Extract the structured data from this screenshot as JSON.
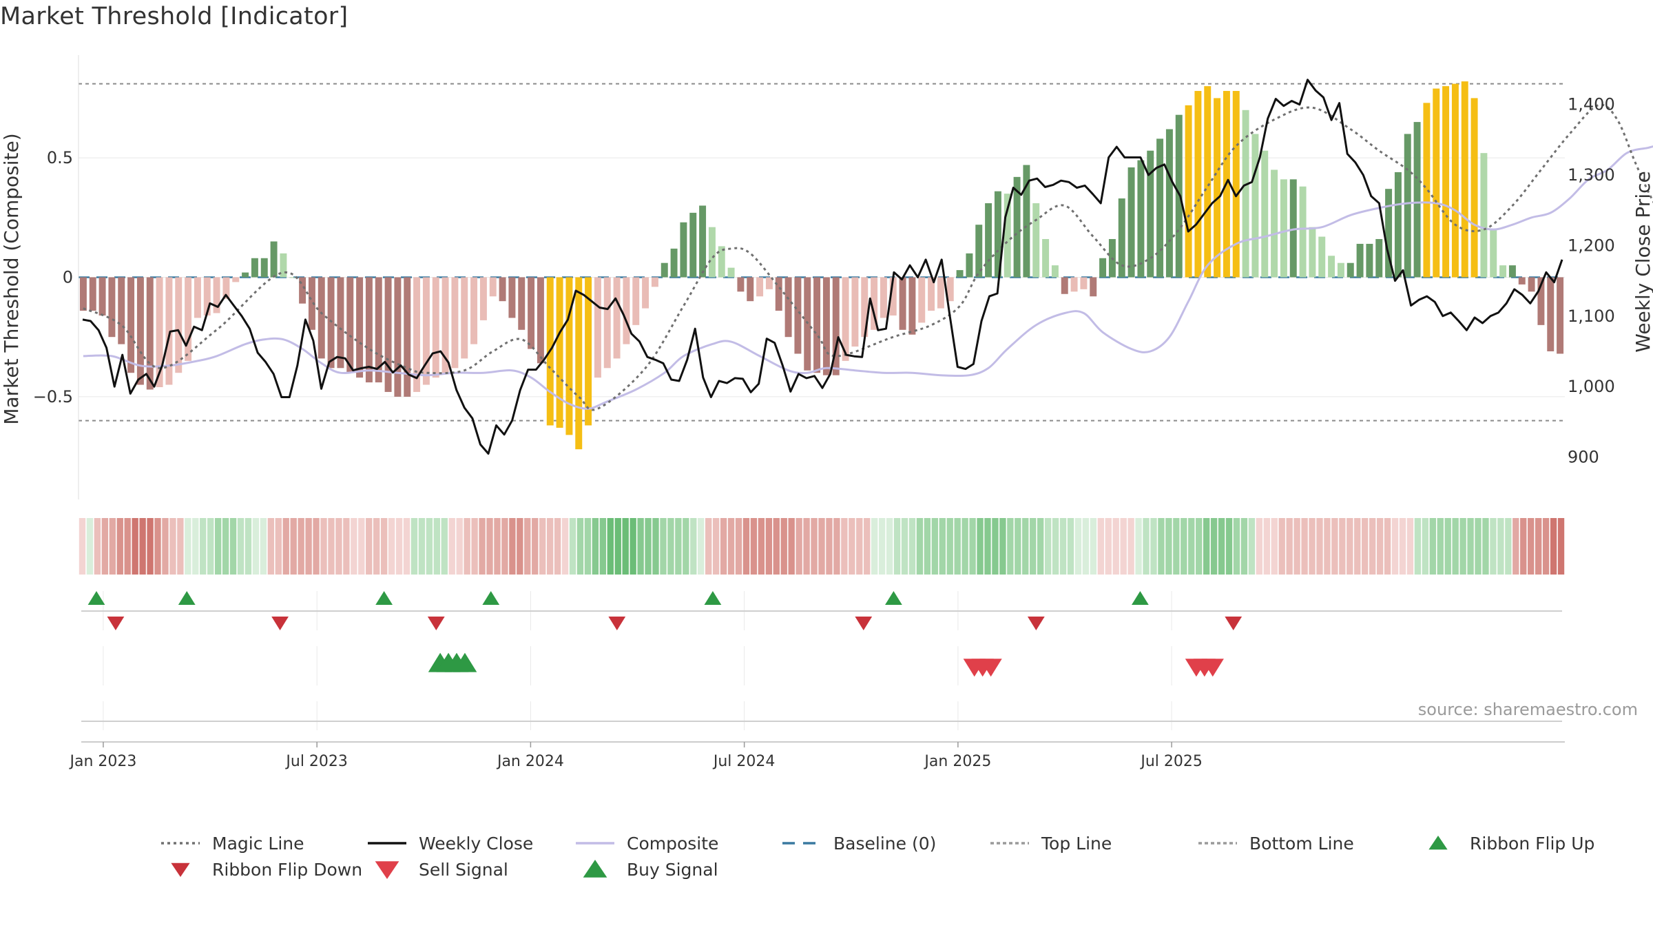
{
  "title": "Market Threshold [Indicator]",
  "source": "source: sharemaestro.com",
  "chart_data": {
    "type": "bar",
    "ylabel_left": "Market Threshold (Composite)",
    "ylabel_right": "Weekly Close Price",
    "left_ylim": [
      -0.93,
      0.93
    ],
    "right_ylim": [
      840,
      1470
    ],
    "left_ticks": [
      {
        "v": 0.5,
        "label": "0.5"
      },
      {
        "v": 0,
        "label": "0"
      },
      {
        "v": -0.5,
        "label": "−0.5"
      }
    ],
    "right_ticks": [
      {
        "v": 1400,
        "label": "1,400"
      },
      {
        "v": 1300,
        "label": "1,300"
      },
      {
        "v": 1200,
        "label": "1,200"
      },
      {
        "v": 1100,
        "label": "1,100"
      },
      {
        "v": 1000,
        "label": "1,000"
      },
      {
        "v": 900,
        "label": "900"
      }
    ],
    "x_ticks": [
      {
        "week": 1,
        "label": "Jan 2023"
      },
      {
        "week": 27,
        "label": "Jul 2023"
      },
      {
        "week": 53,
        "label": "Jan 2024"
      },
      {
        "week": 79,
        "label": "Jul 2024"
      },
      {
        "week": 105,
        "label": "Jan 2025"
      },
      {
        "week": 131,
        "label": "Jul 2025"
      }
    ],
    "top_line": 0.81,
    "bottom_line": -0.6,
    "colors": {
      "strong_up": "#669966",
      "weak_up": "#b0d8aa",
      "strong_down": "#b07a76",
      "weak_down": "#e9bcb6",
      "extreme": "#f5be14",
      "close": "#111111",
      "composite": "#c2bce6",
      "magic": "#707070",
      "baseline": "#3a7aa0",
      "buy": "#2e9944",
      "sell": "#d0313c",
      "flip_down": "#c8323a"
    },
    "composite_bars": [
      -0.14,
      -0.14,
      -0.16,
      -0.25,
      -0.28,
      -0.4,
      -0.45,
      -0.47,
      -0.46,
      -0.45,
      -0.4,
      -0.35,
      -0.17,
      -0.16,
      -0.15,
      -0.09,
      -0.02,
      0.02,
      0.08,
      0.08,
      0.15,
      0.1,
      0.0,
      -0.11,
      -0.22,
      -0.34,
      -0.38,
      -0.38,
      -0.4,
      -0.42,
      -0.44,
      -0.44,
      -0.48,
      -0.5,
      -0.5,
      -0.48,
      -0.45,
      -0.42,
      -0.4,
      -0.38,
      -0.34,
      -0.28,
      -0.18,
      -0.08,
      -0.1,
      -0.17,
      -0.22,
      -0.3,
      -0.36,
      -0.62,
      -0.63,
      -0.66,
      -0.72,
      -0.62,
      -0.42,
      -0.38,
      -0.34,
      -0.28,
      -0.2,
      -0.13,
      -0.04,
      0.06,
      0.12,
      0.23,
      0.27,
      0.3,
      0.21,
      0.13,
      0.04,
      -0.06,
      -0.1,
      -0.08,
      -0.05,
      -0.14,
      -0.25,
      -0.32,
      -0.39,
      -0.4,
      -0.41,
      -0.41,
      -0.35,
      -0.29,
      -0.25,
      -0.22,
      -0.17,
      -0.16,
      -0.22,
      -0.24,
      -0.19,
      -0.14,
      -0.13,
      -0.1,
      0.03,
      0.1,
      0.22,
      0.31,
      0.36,
      0.35,
      0.42,
      0.47,
      0.31,
      0.16,
      0.05,
      -0.07,
      -0.06,
      -0.05,
      -0.08,
      0.08,
      0.16,
      0.33,
      0.46,
      0.49,
      0.53,
      0.58,
      0.62,
      0.68,
      0.72,
      0.78,
      0.8,
      0.75,
      0.78,
      0.78,
      0.7,
      0.6,
      0.53,
      0.45,
      0.41,
      0.41,
      0.38,
      0.21,
      0.17,
      0.09,
      0.06,
      0.06,
      0.14,
      0.14,
      0.16,
      0.37,
      0.44,
      0.6,
      0.65,
      0.73,
      0.79,
      0.8,
      0.81,
      0.82,
      0.75,
      0.52,
      0.2,
      0.05,
      0.05,
      -0.03,
      -0.06,
      -0.2,
      -0.31,
      -0.32
    ],
    "close_prices": [
      1095,
      1093,
      1080,
      1055,
      1000,
      1045,
      990,
      1010,
      1018,
      1000,
      1030,
      1078,
      1080,
      1058,
      1085,
      1080,
      1118,
      1113,
      1130,
      1115,
      1100,
      1082,
      1048,
      1035,
      1018,
      985,
      985,
      1030,
      1095,
      1065,
      997,
      1035,
      1042,
      1040,
      1023,
      1026,
      1028,
      1025,
      1035,
      1020,
      1030,
      1017,
      1012,
      1030,
      1047,
      1050,
      1034,
      995,
      970,
      955,
      918,
      905,
      945,
      932,
      952,
      995,
      1024,
      1024,
      1038,
      1055,
      1077,
      1095,
      1136,
      1130,
      1121,
      1112,
      1110,
      1125,
      1102,
      1075,
      1064,
      1042,
      1038,
      1033,
      1010,
      1008,
      1038,
      1082,
      1013,
      985,
      1008,
      1005,
      1012,
      1011,
      992,
      1004,
      1068,
      1062,
      1030,
      993,
      1018,
      1012,
      1015,
      998,
      1018,
      1070,
      1045,
      1043,
      1042,
      1125,
      1080,
      1082,
      1162,
      1152,
      1172,
      1155,
      1180,
      1148,
      1180,
      1102,
      1028,
      1025,
      1032,
      1093,
      1128,
      1132,
      1240,
      1282,
      1272,
      1292,
      1295,
      1283,
      1286,
      1292,
      1290,
      1282,
      1285,
      1273,
      1260,
      1325,
      1340,
      1325,
      1325,
      1325,
      1300,
      1310,
      1315,
      1290,
      1270,
      1220,
      1230,
      1245,
      1260,
      1270,
      1293,
      1270,
      1285,
      1290,
      1325,
      1380,
      1408,
      1398,
      1405,
      1400,
      1435,
      1420,
      1410,
      1378,
      1402,
      1330,
      1318,
      1300,
      1270,
      1260,
      1195,
      1150,
      1165,
      1115,
      1123,
      1128,
      1120,
      1100,
      1105,
      1093,
      1080,
      1098,
      1090,
      1100,
      1105,
      1118,
      1138,
      1130,
      1118,
      1135,
      1162,
      1148,
      1180
    ],
    "magic_line": [
      [
        0,
        -0.13
      ],
      [
        4,
        -0.2
      ],
      [
        8,
        -0.38
      ],
      [
        14,
        -0.22
      ],
      [
        21,
        0.02
      ],
      [
        25,
        -0.15
      ],
      [
        30,
        -0.3
      ],
      [
        34,
        -0.38
      ],
      [
        36,
        -0.4
      ],
      [
        40,
        -0.39
      ],
      [
        43,
        -0.31
      ],
      [
        46,
        -0.26
      ],
      [
        49,
        -0.38
      ],
      [
        52,
        -0.5
      ],
      [
        54,
        -0.55
      ],
      [
        59,
        -0.38
      ],
      [
        63,
        -0.12
      ],
      [
        66,
        0.08
      ],
      [
        68,
        0.12
      ],
      [
        70,
        0.1
      ],
      [
        73,
        -0.04
      ],
      [
        77,
        -0.24
      ],
      [
        79,
        -0.33
      ],
      [
        85,
        -0.25
      ],
      [
        89,
        -0.2
      ],
      [
        92,
        -0.12
      ],
      [
        94,
        0.02
      ],
      [
        97,
        0.15
      ],
      [
        100,
        0.24
      ],
      [
        103,
        0.3
      ],
      [
        106,
        0.17
      ],
      [
        109,
        0.05
      ],
      [
        112,
        0.08
      ],
      [
        115,
        0.2
      ],
      [
        118,
        0.38
      ],
      [
        121,
        0.55
      ],
      [
        125,
        0.66
      ],
      [
        129,
        0.71
      ],
      [
        133,
        0.62
      ],
      [
        136,
        0.53
      ],
      [
        139,
        0.45
      ],
      [
        141,
        0.37
      ],
      [
        144,
        0.22
      ],
      [
        147,
        0.2
      ],
      [
        150,
        0.3
      ],
      [
        153,
        0.45
      ],
      [
        156,
        0.6
      ],
      [
        159,
        0.72
      ],
      [
        161,
        0.66
      ],
      [
        163,
        0.47
      ],
      [
        165,
        0.3
      ],
      [
        168,
        0.1
      ],
      [
        171,
        0.0
      ],
      [
        172,
        -0.01
      ]
    ],
    "composite_line": [
      [
        0,
        -0.33
      ],
      [
        3,
        -0.33
      ],
      [
        6,
        -0.37
      ],
      [
        9,
        -0.37
      ],
      [
        12,
        -0.35
      ],
      [
        14,
        -0.33
      ],
      [
        17,
        -0.28
      ],
      [
        19,
        -0.26
      ],
      [
        21,
        -0.26
      ],
      [
        23,
        -0.3
      ],
      [
        25,
        -0.36
      ],
      [
        27,
        -0.4
      ],
      [
        30,
        -0.39
      ],
      [
        33,
        -0.4
      ],
      [
        36,
        -0.41
      ],
      [
        39,
        -0.4
      ],
      [
        42,
        -0.4
      ],
      [
        45,
        -0.39
      ],
      [
        47,
        -0.42
      ],
      [
        49,
        -0.48
      ],
      [
        51,
        -0.53
      ],
      [
        53,
        -0.55
      ],
      [
        55,
        -0.52
      ],
      [
        58,
        -0.47
      ],
      [
        61,
        -0.4
      ],
      [
        63,
        -0.33
      ],
      [
        66,
        -0.28
      ],
      [
        68,
        -0.27
      ],
      [
        71,
        -0.33
      ],
      [
        74,
        -0.39
      ],
      [
        76,
        -0.4
      ],
      [
        78,
        -0.38
      ],
      [
        81,
        -0.39
      ],
      [
        84,
        -0.4
      ],
      [
        87,
        -0.4
      ],
      [
        90,
        -0.41
      ],
      [
        93,
        -0.41
      ],
      [
        95,
        -0.38
      ],
      [
        97,
        -0.3
      ],
      [
        100,
        -0.2
      ],
      [
        103,
        -0.15
      ],
      [
        105,
        -0.15
      ],
      [
        107,
        -0.23
      ],
      [
        110,
        -0.3
      ],
      [
        112,
        -0.31
      ],
      [
        114,
        -0.25
      ],
      [
        116,
        -0.1
      ],
      [
        118,
        0.05
      ],
      [
        121,
        0.14
      ],
      [
        124,
        0.17
      ],
      [
        127,
        0.2
      ],
      [
        130,
        0.21
      ],
      [
        133,
        0.26
      ],
      [
        136,
        0.29
      ],
      [
        139,
        0.31
      ],
      [
        142,
        0.31
      ],
      [
        144,
        0.28
      ],
      [
        146,
        0.22
      ],
      [
        148,
        0.2
      ],
      [
        150,
        0.22
      ],
      [
        152,
        0.25
      ],
      [
        154,
        0.27
      ],
      [
        156,
        0.33
      ],
      [
        158,
        0.41
      ],
      [
        160,
        0.45
      ],
      [
        162,
        0.52
      ],
      [
        164,
        0.54
      ],
      [
        166,
        0.54
      ],
      [
        168,
        0.4
      ],
      [
        170,
        0.33
      ],
      [
        172,
        0.23
      ],
      [
        174,
        0.17
      ],
      [
        176,
        0.15
      ]
    ],
    "ribbon_levels": [
      -1,
      1,
      -2,
      -3,
      -3,
      -4,
      -4,
      -5,
      -5,
      -5,
      -4,
      -3,
      -2,
      -2,
      1,
      1,
      2,
      2,
      3,
      3,
      3,
      2,
      2,
      1,
      1,
      -2,
      -2,
      -3,
      -3,
      -3,
      -3,
      -3,
      -2,
      -2,
      -2,
      -2,
      -1,
      -1,
      -2,
      -2,
      -2,
      -1,
      -1,
      -1,
      2,
      2,
      2,
      2,
      2,
      -1,
      -1,
      -2,
      -2,
      -3,
      -3,
      -3,
      -3,
      -4,
      -4,
      -3,
      -3,
      -2,
      -2,
      -2,
      -1,
      2,
      3,
      3,
      4,
      4,
      5,
      5,
      5,
      5,
      4,
      4,
      4,
      3,
      3,
      3,
      3,
      2,
      1,
      -2,
      -2,
      -3,
      -3,
      -3,
      -4,
      -4,
      -4,
      -4,
      -4,
      -4,
      -4,
      -3,
      -3,
      -3,
      -3,
      -3,
      -3,
      -2,
      -2,
      -2,
      -2,
      1,
      1,
      1,
      2,
      2,
      2,
      3,
      3,
      3,
      3,
      3,
      3,
      3,
      3,
      4,
      4,
      4,
      4,
      3,
      3,
      3,
      3,
      3,
      2,
      2,
      2,
      2,
      1,
      1,
      1,
      -1,
      -1,
      -1,
      -1,
      -1,
      1,
      2,
      2,
      3,
      3,
      3,
      3,
      3,
      3,
      4,
      4,
      4,
      4,
      3,
      3,
      2,
      -1,
      -1,
      -1,
      -2,
      -2,
      -2,
      -2,
      -2,
      -2,
      -2,
      -2,
      -2,
      -2,
      -2,
      -2,
      -2,
      -2,
      -2,
      -1,
      -1,
      -1,
      2,
      2,
      3,
      3,
      3,
      3,
      3,
      3,
      3,
      3,
      2,
      2,
      2,
      -3,
      -4,
      -4,
      -4,
      -4,
      -5,
      -5
    ],
    "ribbon_flip_up_weeks": [
      0,
      11,
      35,
      48,
      75,
      97,
      127
    ],
    "ribbon_flip_down_weeks": [
      1,
      21,
      40,
      62,
      92,
      113,
      137
    ],
    "buy_signal_weeks": [
      42,
      43,
      44,
      45
    ],
    "sell_signal_weeks": [
      107,
      108,
      109,
      134,
      135,
      136
    ],
    "legend": [
      {
        "label": "Magic Line",
        "style": "dotted",
        "color": "#707070"
      },
      {
        "label": "Weekly Close",
        "style": "solid",
        "color": "#111111"
      },
      {
        "label": "Composite",
        "style": "solid",
        "color": "#c2bce6"
      },
      {
        "label": "Baseline (0)",
        "style": "dashed",
        "color": "#3a7aa0"
      },
      {
        "label": "Top Line",
        "style": "dotted",
        "color": "#9a9a9a"
      },
      {
        "label": "Bottom Line",
        "style": "dotted",
        "color": "#9a9a9a"
      },
      {
        "label": "Ribbon Flip Up",
        "style": "tri-up",
        "color": "#2e9944"
      },
      {
        "label": "Ribbon Flip Down",
        "style": "tri-down",
        "color": "#c8323a"
      },
      {
        "label": "Sell Signal",
        "style": "tri-down-large",
        "color": "#e0404a"
      },
      {
        "label": "Buy Signal",
        "style": "tri-up-large",
        "color": "#2e9944"
      }
    ]
  }
}
